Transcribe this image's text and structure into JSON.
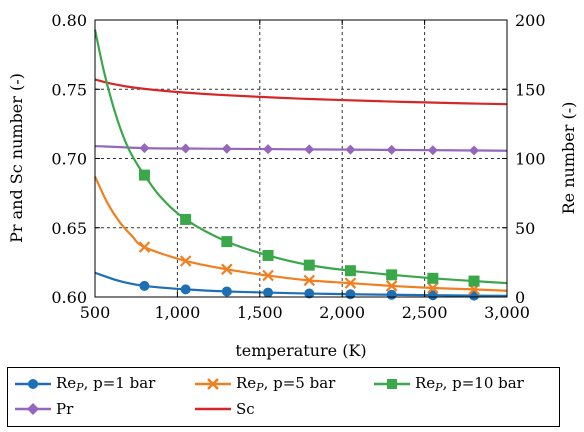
{
  "chart_data": {
    "type": "line",
    "xlabel": "temperature (K)",
    "ylabel_left": "Pr and Sc number (-)",
    "ylabel_right": "Re number (-)",
    "xlim": [
      500,
      3000
    ],
    "ylim_left": [
      0.6,
      0.8
    ],
    "ylim_right": [
      0,
      200
    ],
    "x_ticks": [
      500,
      1000,
      1500,
      2000,
      2500,
      3000
    ],
    "x_tick_labels": [
      "500",
      "1,000",
      "1,500",
      "2,000",
      "2,500",
      "3,000"
    ],
    "y_left_ticks": [
      0.6,
      0.65,
      0.7,
      0.75,
      0.8
    ],
    "y_left_tick_labels": [
      "0.60",
      "0.65",
      "0.70",
      "0.75",
      "0.80"
    ],
    "y_right_ticks": [
      0,
      50,
      100,
      150,
      200
    ],
    "y_right_tick_labels": [
      "0",
      "50",
      "100",
      "150",
      "200"
    ],
    "grid": true,
    "legend_position": "bottom",
    "series": [
      {
        "name": "Re_P, p=1 bar",
        "label_main": "Re",
        "label_sub": "P",
        "label_rest": ", p=1 bar",
        "axis": "right",
        "color": "#1f6fb4",
        "marker": "circle",
        "x": [
          500,
          650,
          800,
          1050,
          1300,
          1550,
          1800,
          2050,
          2300,
          2550,
          2800,
          3000
        ],
        "y": [
          17.5,
          11.5,
          8,
          5.5,
          4,
          3.2,
          2.5,
          2,
          1.6,
          1.3,
          1,
          0.8
        ],
        "marker_x": [
          800,
          1050,
          1300,
          1550,
          1800,
          2050,
          2300,
          2550,
          2800
        ]
      },
      {
        "name": "Re_P, p=5 bar",
        "label_main": "Re",
        "label_sub": "P",
        "label_rest": ", p=5 bar",
        "axis": "right",
        "color": "#f07f21",
        "marker": "x",
        "x": [
          500,
          575,
          650,
          725,
          800,
          1050,
          1300,
          1550,
          1800,
          2050,
          2300,
          2550,
          2800,
          3000
        ],
        "y": [
          87,
          68,
          54,
          44,
          36,
          26,
          20,
          15.5,
          12,
          10,
          8,
          6.5,
          5.5,
          4.5
        ],
        "marker_x": [
          800,
          1050,
          1300,
          1550,
          1800,
          2050,
          2300,
          2550,
          2800
        ]
      },
      {
        "name": "Re_P, p=10 bar",
        "label_main": "Re",
        "label_sub": "P",
        "label_rest": ", p=10 bar",
        "axis": "right",
        "color": "#3aa84a",
        "marker": "square",
        "x": [
          500,
          550,
          600,
          650,
          700,
          750,
          800,
          900,
          1050,
          1300,
          1550,
          1800,
          2050,
          2300,
          2550,
          2800,
          3000
        ],
        "y": [
          193,
          165,
          142,
          123,
          108,
          97,
          88,
          72,
          56,
          40,
          30,
          23,
          19,
          16,
          13.5,
          11.5,
          10
        ],
        "marker_x": [
          800,
          1050,
          1300,
          1550,
          1800,
          2050,
          2300,
          2550,
          2800
        ]
      },
      {
        "name": "Pr",
        "label_main": "Pr",
        "label_sub": "",
        "label_rest": "",
        "axis": "left",
        "color": "#9467bd",
        "marker": "diamond",
        "x": [
          500,
          800,
          1050,
          1300,
          1550,
          1800,
          2050,
          2300,
          2550,
          2800,
          3000
        ],
        "y": [
          0.709,
          0.7075,
          0.7072,
          0.707,
          0.7068,
          0.7066,
          0.7064,
          0.7062,
          0.706,
          0.7058,
          0.7056
        ],
        "marker_x": [
          800,
          1050,
          1300,
          1550,
          1800,
          2050,
          2300,
          2550,
          2800
        ]
      },
      {
        "name": "Sc",
        "label_main": "Sc",
        "label_sub": "",
        "label_rest": "",
        "axis": "left",
        "color": "#d62728",
        "marker": "none",
        "x": [
          500,
          600,
          750,
          1000,
          1250,
          1500,
          1750,
          2000,
          2250,
          2500,
          2750,
          3000
        ],
        "y": [
          0.757,
          0.754,
          0.751,
          0.748,
          0.746,
          0.7445,
          0.7432,
          0.7422,
          0.7413,
          0.7405,
          0.7398,
          0.7392
        ],
        "marker_x": []
      }
    ]
  }
}
